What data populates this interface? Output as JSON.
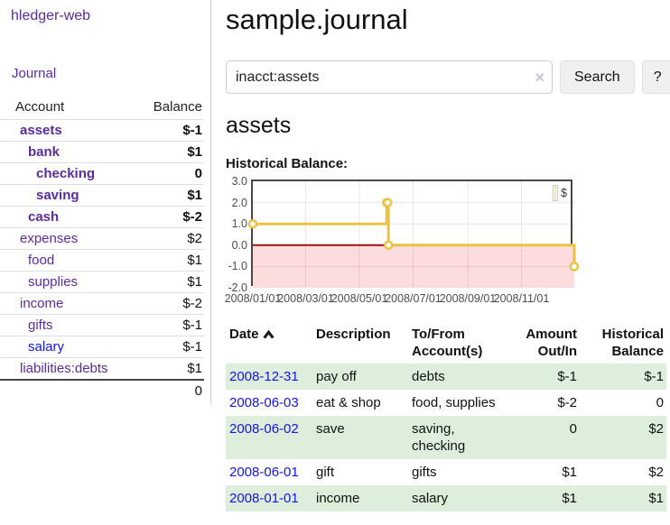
{
  "app": {
    "title": "hledger-web"
  },
  "sidebar": {
    "journal_label": "Journal",
    "accounts": {
      "header_account": "Account",
      "header_balance": "Balance",
      "rows": [
        {
          "name": "assets",
          "balance": "$-1",
          "depth": 0,
          "bold": true,
          "link": "purple"
        },
        {
          "name": "bank",
          "balance": "$1",
          "depth": 1,
          "bold": true,
          "link": "purple"
        },
        {
          "name": "checking",
          "balance": "0",
          "depth": 2,
          "bold": true,
          "link": "purple"
        },
        {
          "name": "saving",
          "balance": "$1",
          "depth": 2,
          "bold": true,
          "link": "purple"
        },
        {
          "name": "cash",
          "balance": "$-2",
          "depth": 1,
          "bold": true,
          "link": "purple"
        },
        {
          "name": "expenses",
          "balance": "$2",
          "depth": 0,
          "bold": false,
          "link": "purple"
        },
        {
          "name": "food",
          "balance": "$1",
          "depth": 1,
          "bold": false,
          "link": "purple"
        },
        {
          "name": "supplies",
          "balance": "$1",
          "depth": 1,
          "bold": false,
          "link": "purple"
        },
        {
          "name": "income",
          "balance": "$-2",
          "depth": 0,
          "bold": false,
          "link": "purple"
        },
        {
          "name": "gifts",
          "balance": "$-1",
          "depth": 1,
          "bold": false,
          "link": "purple"
        },
        {
          "name": "salary",
          "balance": "$-1",
          "depth": 1,
          "bold": false,
          "link": "blue"
        },
        {
          "name": "liabilities:debts",
          "balance": "$1",
          "depth": 0,
          "bold": false,
          "link": "purple"
        }
      ],
      "total": "0"
    }
  },
  "main": {
    "title": "sample.journal",
    "search": {
      "value": "inacct:assets",
      "clear_glyph": "×",
      "button_label": "Search",
      "help_label": "?"
    },
    "account_heading": "assets",
    "chart_label": "Historical Balance:"
  },
  "chart_data": {
    "type": "line",
    "title": "Historical Balance",
    "step": true,
    "series": [
      {
        "name": "$",
        "points": [
          [
            "2008-01-01",
            1
          ],
          [
            "2008-06-01",
            2
          ],
          [
            "2008-06-02",
            2
          ],
          [
            "2008-06-03",
            0
          ],
          [
            "2008-12-31",
            -1
          ]
        ]
      }
    ],
    "x_min": "2008-01-01",
    "x_max": "2008-12-31",
    "y_min": -2,
    "y_max": 3,
    "x_ticks": [
      {
        "date": "2008-01-01",
        "label": "2008/01/01"
      },
      {
        "date": "2008-03-01",
        "label": "2008/03/01"
      },
      {
        "date": "2008-05-01",
        "label": "2008/05/01"
      },
      {
        "date": "2008-07-01",
        "label": "2008/07/01"
      },
      {
        "date": "2008-09-01",
        "label": "2008/09/01"
      },
      {
        "date": "2008-11-01",
        "label": "2008/11/01"
      }
    ],
    "y_ticks": [
      3,
      2,
      1,
      0,
      -1,
      -2
    ],
    "y_gridlines": [
      2,
      1,
      -1
    ],
    "legend_label": "$",
    "legend_position": "top-right",
    "grid": true,
    "colors": {
      "series": "#EDC240",
      "zero_line": "#991414",
      "negative_region": "#fcdcdc",
      "link_purple": "#5a2ca0",
      "link_blue": "#1414e8",
      "negative_amount": "#8e1d1d",
      "negative_amount_dim": "#c87d7d",
      "row_stripe": "#ddeedd"
    }
  },
  "register": {
    "sort": "Date ascending",
    "headers": {
      "date": "Date",
      "description": "Description",
      "accounts": "To/From Account(s)",
      "amount": "Amount Out/In",
      "balance": "Historical Balance"
    },
    "rows": [
      {
        "date": "2008-12-31",
        "description": "pay off",
        "accounts": "debts",
        "amount": "$-1",
        "balance": "$-1"
      },
      {
        "date": "2008-06-03",
        "description": "eat & shop",
        "accounts": "food, supplies",
        "amount": "$-2",
        "balance": "0"
      },
      {
        "date": "2008-06-02",
        "description": "save",
        "accounts": "saving, checking",
        "amount": "0",
        "balance": "$2"
      },
      {
        "date": "2008-06-01",
        "description": "gift",
        "accounts": "gifts",
        "amount": "$1",
        "balance": "$2"
      },
      {
        "date": "2008-01-01",
        "description": "income",
        "accounts": "salary",
        "amount": "$1",
        "balance": "$1"
      }
    ]
  }
}
